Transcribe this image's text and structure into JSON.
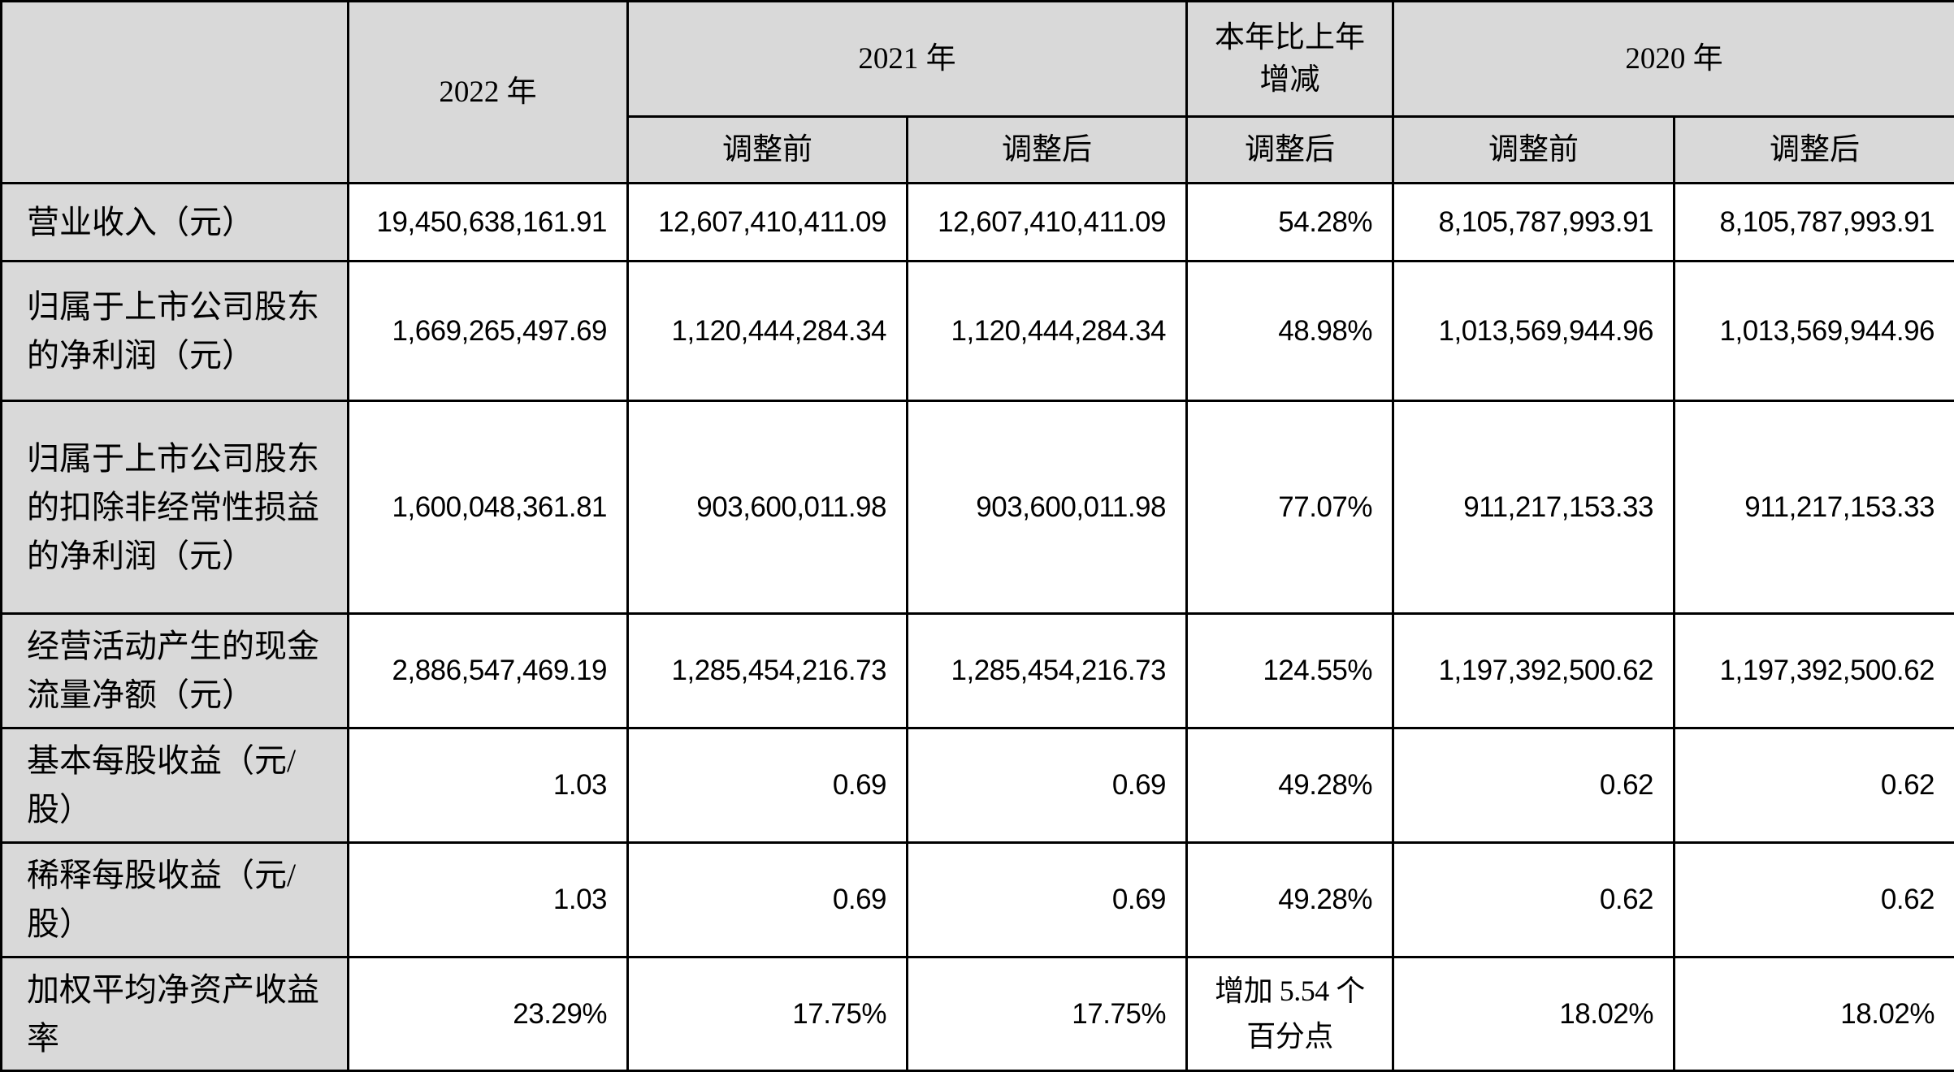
{
  "header": {
    "col_2022": "2022 年",
    "col_2021": "2021 年",
    "col_change": "本年比上年增减",
    "col_2020": "2020 年",
    "sub_2021_before": "调整前",
    "sub_2021_after": "调整后",
    "sub_change_after": "调整后",
    "sub_2020_before": "调整前",
    "sub_2020_after": "调整后"
  },
  "rows": [
    {
      "label": "营业收入（元）",
      "values": [
        "19,450,638,161.91",
        "12,607,410,411.09",
        "12,607,410,411.09",
        "54.28%",
        "8,105,787,993.91",
        "8,105,787,993.91"
      ]
    },
    {
      "label": "归属于上市公司股东的净利润（元）",
      "values": [
        "1,669,265,497.69",
        "1,120,444,284.34",
        "1,120,444,284.34",
        "48.98%",
        "1,013,569,944.96",
        "1,013,569,944.96"
      ]
    },
    {
      "label": "归属于上市公司股东的扣除非经常性损益的净利润（元）",
      "values": [
        "1,600,048,361.81",
        "903,600,011.98",
        "903,600,011.98",
        "77.07%",
        "911,217,153.33",
        "911,217,153.33"
      ]
    },
    {
      "label": "经营活动产生的现金流量净额（元）",
      "values": [
        "2,886,547,469.19",
        "1,285,454,216.73",
        "1,285,454,216.73",
        "124.55%",
        "1,197,392,500.62",
        "1,197,392,500.62"
      ]
    },
    {
      "label": "基本每股收益（元/股）",
      "values": [
        "1.03",
        "0.69",
        "0.69",
        "49.28%",
        "0.62",
        "0.62"
      ]
    },
    {
      "label": "稀释每股收益（元/股）",
      "values": [
        "1.03",
        "0.69",
        "0.69",
        "49.28%",
        "0.62",
        "0.62"
      ]
    },
    {
      "label": "加权平均净资产收益率",
      "values": [
        "23.29%",
        "17.75%",
        "17.75%",
        "增加 5.54 个百分点",
        "18.02%",
        "18.02%"
      ]
    }
  ]
}
